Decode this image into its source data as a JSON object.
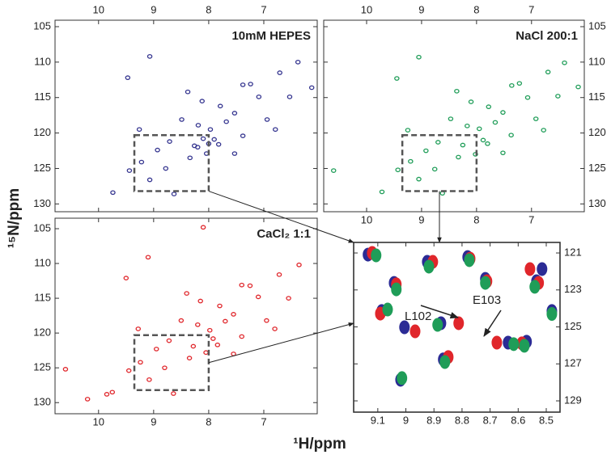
{
  "figure": {
    "x_label": "¹H/ppm",
    "y_label": "¹⁵N/ppm"
  },
  "zoom_region": {
    "xlim": [
      8.0,
      9.35
    ],
    "ylim": [
      120.3,
      128.2
    ]
  },
  "chart_data": [
    {
      "type": "scatter",
      "title": "10mM HEPES",
      "color": "#34348f",
      "x": [
        6.38,
        7.24,
        6.71,
        9.07,
        9.47,
        8.38,
        7.79,
        7.53,
        7.38,
        8.12,
        8.49,
        8.19,
        7.97,
        7.9,
        8.26,
        8.71,
        8.93,
        9.22,
        9.44,
        8.78,
        9.07,
        8.63,
        9.74,
        7.82,
        7.68,
        6.94,
        6.79,
        7.38,
        8.04,
        8.34,
        7.53,
        7.09,
        6.53,
        6.13,
        9.26,
        8.1,
        8.0,
        8.2
      ],
      "values": [
        110.0,
        113.1,
        111.5,
        109.2,
        112.2,
        114.2,
        116.2,
        117.2,
        113.2,
        115.5,
        118.1,
        118.9,
        119.5,
        120.9,
        121.8,
        121.2,
        122.4,
        124.1,
        125.3,
        125.0,
        126.6,
        128.6,
        128.4,
        121.6,
        118.4,
        118.1,
        119.5,
        120.4,
        122.9,
        123.5,
        122.9,
        114.9,
        114.9,
        113.6,
        119.5,
        120.8,
        121.5,
        122.0
      ],
      "xlim": [
        6.03,
        10.79
      ],
      "x_inverted": true,
      "xticks": [
        10,
        9,
        8,
        7
      ],
      "ylim": [
        104.09,
        131.1
      ],
      "y_inverted": true,
      "yticks": [
        105,
        110,
        115,
        120,
        125,
        130
      ],
      "x_labels": "top",
      "y_labels": "left"
    },
    {
      "type": "scatter",
      "title": "NaCl 200:1",
      "color": "#1f9d58",
      "x": [
        6.4,
        7.22,
        6.7,
        9.05,
        9.45,
        8.36,
        7.78,
        7.52,
        7.36,
        8.1,
        8.47,
        8.17,
        7.95,
        7.88,
        8.25,
        8.7,
        8.92,
        9.2,
        9.43,
        8.76,
        9.05,
        8.62,
        9.72,
        7.8,
        7.66,
        6.92,
        6.78,
        7.37,
        8.02,
        8.33,
        7.52,
        7.07,
        6.52,
        6.15,
        9.25,
        10.6
      ],
      "values": [
        110.1,
        113.0,
        111.4,
        109.3,
        112.3,
        114.1,
        116.3,
        117.1,
        113.3,
        115.6,
        118.0,
        119.0,
        119.4,
        121.0,
        121.7,
        121.3,
        122.5,
        124.0,
        125.2,
        125.1,
        126.5,
        128.5,
        128.3,
        121.5,
        118.5,
        118.0,
        119.6,
        120.3,
        123.0,
        123.4,
        122.8,
        115.0,
        114.8,
        113.5,
        119.6,
        125.3
      ],
      "xlim": [
        6.04,
        10.78
      ],
      "x_inverted": true,
      "xticks": [
        10,
        9,
        8,
        7
      ],
      "ylim": [
        104.09,
        131.1
      ],
      "y_inverted": true,
      "yticks": [
        105,
        110,
        115,
        120,
        125,
        130
      ],
      "x_labels": "both",
      "y_labels": "right"
    },
    {
      "type": "scatter",
      "title": "CaCl₂ 1:1",
      "color": "#e0262b",
      "x": [
        6.36,
        7.25,
        6.72,
        9.1,
        9.5,
        8.4,
        7.8,
        7.55,
        7.4,
        8.15,
        8.5,
        8.2,
        7.98,
        7.92,
        8.28,
        8.72,
        8.95,
        9.24,
        9.45,
        8.8,
        9.08,
        8.64,
        9.75,
        7.84,
        7.7,
        6.95,
        6.8,
        7.4,
        8.05,
        8.35,
        7.55,
        7.1,
        6.55,
        9.28,
        8.1,
        10.6,
        10.2,
        9.85
      ],
      "values": [
        110.2,
        113.2,
        111.6,
        109.1,
        112.1,
        114.3,
        116.1,
        117.3,
        113.1,
        115.4,
        118.2,
        118.8,
        119.6,
        120.8,
        121.9,
        121.1,
        122.3,
        124.2,
        125.4,
        125.0,
        126.7,
        128.7,
        128.5,
        121.7,
        118.3,
        118.2,
        119.4,
        120.5,
        122.8,
        123.6,
        123.0,
        114.8,
        115.0,
        119.4,
        104.8,
        125.2,
        129.5,
        128.8
      ],
      "xlim": [
        6.03,
        10.79
      ],
      "x_inverted": true,
      "xticks": [
        10,
        9,
        8,
        7
      ],
      "ylim": [
        103.49,
        131.6
      ],
      "y_inverted": true,
      "yticks": [
        105,
        110,
        115,
        120,
        125,
        130
      ],
      "x_labels": "bottom",
      "y_labels": "left"
    },
    {
      "type": "scatter",
      "annotations": [
        "L102",
        "E103"
      ],
      "series": [
        {
          "color": "#2b2b95",
          "x": [
            9.135,
            8.924,
            8.78,
            8.717,
            9.042,
            9.086,
            9.005,
            8.875,
            8.636,
            8.57,
            8.867,
            9.019,
            8.535,
            8.515,
            8.48
          ],
          "values": [
            121.09,
            121.48,
            121.22,
            122.4,
            122.62,
            124.14,
            125.02,
            124.8,
            125.85,
            125.8,
            126.76,
            127.86,
            122.53,
            121.87,
            124.14
          ]
        },
        {
          "color": "#e0262b",
          "x": [
            9.12,
            8.904,
            8.771,
            8.711,
            9.034,
            9.091,
            8.967,
            8.812,
            8.676,
            8.587,
            8.849,
            8.527,
            8.558
          ],
          "values": [
            121.0,
            121.48,
            121.31,
            122.53,
            122.7,
            124.28,
            125.24,
            124.8,
            125.85,
            125.89,
            126.63,
            122.62,
            121.87
          ]
        },
        {
          "color": "#1f9d58",
          "x": [
            9.106,
            8.918,
            8.774,
            8.717,
            9.034,
            9.065,
            8.887,
            8.616,
            8.578,
            8.861,
            9.014,
            8.541,
            8.48
          ],
          "values": [
            121.13,
            121.74,
            121.39,
            122.62,
            122.97,
            124.06,
            124.89,
            125.93,
            126.02,
            126.9,
            127.77,
            122.83,
            124.3
          ]
        }
      ],
      "xlim": [
        8.451,
        9.186
      ],
      "x_inverted": true,
      "xticks": [
        9.1,
        9.0,
        8.9,
        8.8,
        8.7,
        8.6,
        8.5
      ],
      "ylim": [
        120.43,
        129.61
      ],
      "y_inverted": true,
      "yticks": [
        121,
        123,
        125,
        127,
        129
      ],
      "x_labels": "bottom",
      "y_labels": "right"
    }
  ]
}
